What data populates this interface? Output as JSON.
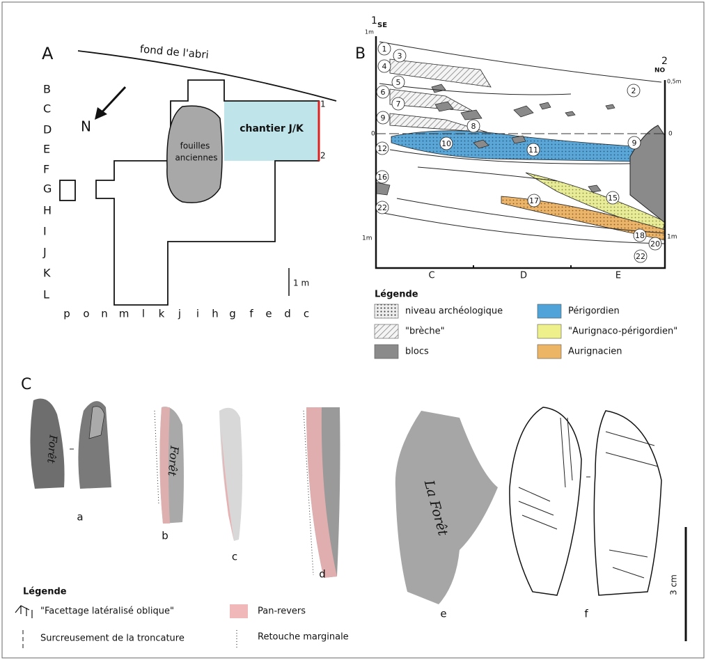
{
  "panel_a": {
    "label": "A",
    "wall": "fond de l'abri",
    "north": "N",
    "rows": [
      "B",
      "C",
      "D",
      "E",
      "F",
      "G",
      "H",
      "I",
      "J",
      "K",
      "L"
    ],
    "columns": [
      "p",
      "o",
      "n",
      "m",
      "l",
      "k",
      "j",
      "i",
      "h",
      "g",
      "f",
      "e",
      "d",
      "c"
    ],
    "excavation": "chantier J/K",
    "old_excavations": [
      "fouilles",
      "anciennes"
    ],
    "section_ends": [
      "1",
      "2"
    ],
    "scale": "1 m"
  },
  "panel_b": {
    "label": "B",
    "start": "1",
    "start_side": "SE",
    "end": "2",
    "end_side": "NO",
    "depth_labels": [
      "1m",
      "0,5m",
      "0",
      "0",
      "1m",
      "1m"
    ],
    "layers": [
      "1",
      "3",
      "4",
      "5",
      "6",
      "7",
      "9",
      "8",
      "2",
      "12",
      "10",
      "11",
      "9",
      "16",
      "15",
      "17",
      "22",
      "18",
      "20",
      "22"
    ],
    "squares": [
      "C",
      "D",
      "E"
    ],
    "legend": {
      "title": "Légende",
      "items": [
        "niveau archéologique",
        "\"brèche\"",
        "blocs",
        "Périgordien",
        "\"Aurignaco-périgordien\"",
        "Aurignacien"
      ]
    }
  },
  "panel_c": {
    "label": "C",
    "pieces": [
      "a",
      "b",
      "c",
      "d",
      "e",
      "f"
    ],
    "inscriptions": [
      "Forêt",
      "Forêt",
      "La Forêt"
    ],
    "scale": "3 cm",
    "legend": {
      "title": "Légende",
      "items": [
        "\"Facettage latéralisé oblique\"",
        "Pan-revers",
        "Surcreusement de la troncature",
        "Retouche marginale"
      ]
    }
  }
}
